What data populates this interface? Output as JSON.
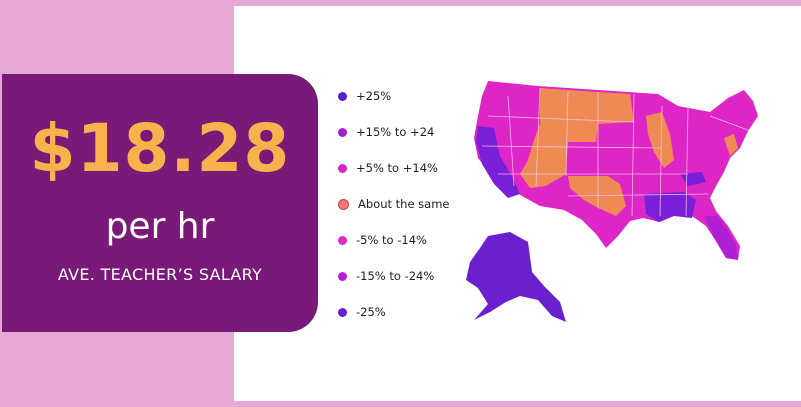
{
  "callout": {
    "value": "$18.28",
    "unit": "per hr",
    "caption": "AVE. TEACHER’S SALARY"
  },
  "legend": [
    {
      "label": "+25%",
      "color": "#5a1fc9"
    },
    {
      "label": "+15% to +24",
      "color": "#a21fd0"
    },
    {
      "label": "+5% to +14%",
      "color": "#d525c2"
    },
    {
      "label": "About the same",
      "color": "#f07a7a"
    },
    {
      "label": "-5% to -14%",
      "color": "#e228c9"
    },
    {
      "label": "-15% to -24%",
      "color": "#b320d4"
    },
    {
      "label": "-25%",
      "color": "#6b20cf"
    }
  ],
  "colors": {
    "background": "#e6a9d6",
    "callout_bg": "#7a1a78",
    "price": "#f7b24d",
    "map_magenta": "#de25c6",
    "map_orange": "#f08a55",
    "map_purple": "#7a1fd8",
    "map_violet": "#b020d2"
  }
}
